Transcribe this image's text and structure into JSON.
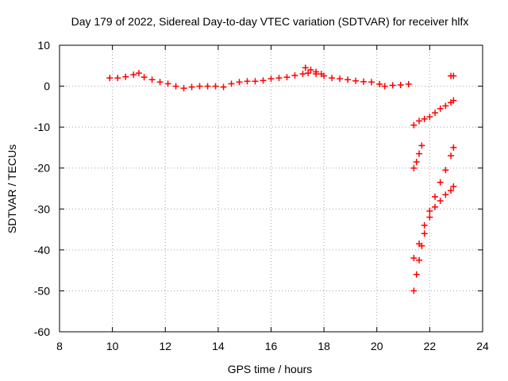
{
  "chart_data": {
    "type": "scatter",
    "title": "Day 179 of 2022, Sidereal Day-to-day VTEC variation (SDTVAR) for receiver hlfx",
    "xlabel": "GPS time / hours",
    "ylabel": "SDTVAR / TECUs",
    "xlim": [
      8,
      24
    ],
    "ylim": [
      -60,
      10
    ],
    "xticks": [
      "8",
      "10",
      "12",
      "14",
      "16",
      "18",
      "20",
      "22",
      "24"
    ],
    "yticks": [
      "10",
      "0",
      "-10",
      "-20",
      "-30",
      "-40",
      "-50",
      "-60"
    ],
    "grid": true,
    "marker": "plus",
    "color": "#ff0000",
    "series": [
      {
        "x": [
          9.9,
          10.2,
          10.5,
          10.8,
          11.0,
          11.2,
          11.5,
          11.8,
          12.1,
          12.4,
          12.7,
          13.0,
          13.3,
          13.6,
          13.9,
          14.2,
          14.5,
          14.8,
          15.1,
          15.4,
          15.7,
          16.0,
          16.3,
          16.6,
          16.9,
          17.2,
          17.4,
          17.7,
          18.0,
          18.3,
          18.6,
          18.9,
          19.2,
          19.5,
          19.8
        ],
        "y": [
          2.0,
          2.0,
          2.3,
          2.8,
          3.2,
          2.2,
          1.6,
          1.0,
          0.6,
          0.0,
          -0.5,
          -0.2,
          0.0,
          0.0,
          0.0,
          -0.2,
          0.6,
          1.0,
          1.2,
          1.2,
          1.4,
          1.8,
          2.0,
          2.2,
          2.6,
          3.0,
          3.2,
          3.0,
          2.5,
          2.0,
          1.8,
          1.6,
          1.3,
          1.1,
          1.0
        ]
      },
      {
        "x": [
          20.1,
          20.3,
          20.6,
          20.9,
          21.2
        ],
        "y": [
          0.5,
          0.0,
          0.2,
          0.3,
          0.5
        ]
      },
      {
        "x": [
          17.3,
          17.5,
          17.7,
          17.9
        ],
        "y": [
          4.5,
          4.0,
          3.5,
          3.0
        ]
      },
      {
        "x": [
          21.4,
          21.6,
          21.8,
          22.0,
          22.2,
          22.4,
          22.6,
          22.8,
          22.9
        ],
        "y": [
          -9.5,
          -8.5,
          -8.0,
          -7.5,
          -6.5,
          -5.5,
          -4.8,
          -4.0,
          -3.5
        ]
      },
      {
        "x": [
          22.8,
          22.9
        ],
        "y": [
          2.5,
          2.5
        ]
      },
      {
        "x": [
          21.4,
          21.5,
          21.6,
          21.7
        ],
        "y": [
          -20.0,
          -18.5,
          -16.5,
          -14.5
        ]
      },
      {
        "x": [
          21.4,
          21.5,
          21.6,
          21.7,
          21.8,
          22.0,
          22.2,
          22.4,
          22.6,
          22.8,
          22.9
        ],
        "y": [
          -50.0,
          -46.0,
          -42.5,
          -39.0,
          -36.0,
          -32.0,
          -29.5,
          -28.0,
          -26.5,
          -25.5,
          -24.5
        ]
      },
      {
        "x": [
          21.4,
          21.6,
          21.8,
          22.0,
          22.2,
          22.4,
          22.6,
          22.8,
          22.9
        ],
        "y": [
          -42.0,
          -38.5,
          -34.0,
          -30.5,
          -27.0,
          -23.5,
          -20.5,
          -17.0,
          -15.0
        ]
      }
    ]
  }
}
